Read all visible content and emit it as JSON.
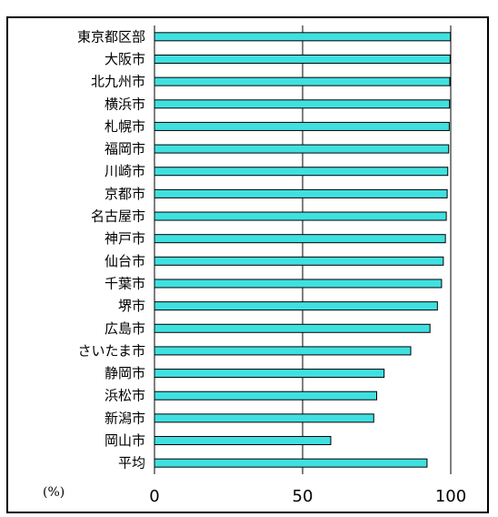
{
  "chart_data": {
    "type": "bar",
    "orientation": "horizontal",
    "title": "",
    "unit_label": "(%)",
    "categories": [
      "東京都区部",
      "大阪市",
      "北九州市",
      "横浜市",
      "札幌市",
      "福岡市",
      "川崎市",
      "京都市",
      "名古屋市",
      "神戸市",
      "仙台市",
      "千葉市",
      "堺市",
      "広島市",
      "さいたま市",
      "静岡市",
      "浜松市",
      "新潟市",
      "岡山市",
      "平均"
    ],
    "values": [
      99.9,
      99.8,
      99.7,
      99.6,
      99.5,
      99.3,
      99.0,
      98.8,
      98.5,
      98.2,
      97.5,
      96.9,
      95.5,
      93.0,
      86.5,
      77.5,
      75.0,
      74.0,
      59.5,
      92.0
    ],
    "xlim": [
      0,
      100
    ],
    "xticks": [
      "0",
      "50",
      "100"
    ],
    "grid": true,
    "bar_color": "#40e0e0",
    "bar_edge_color": "#000000"
  }
}
